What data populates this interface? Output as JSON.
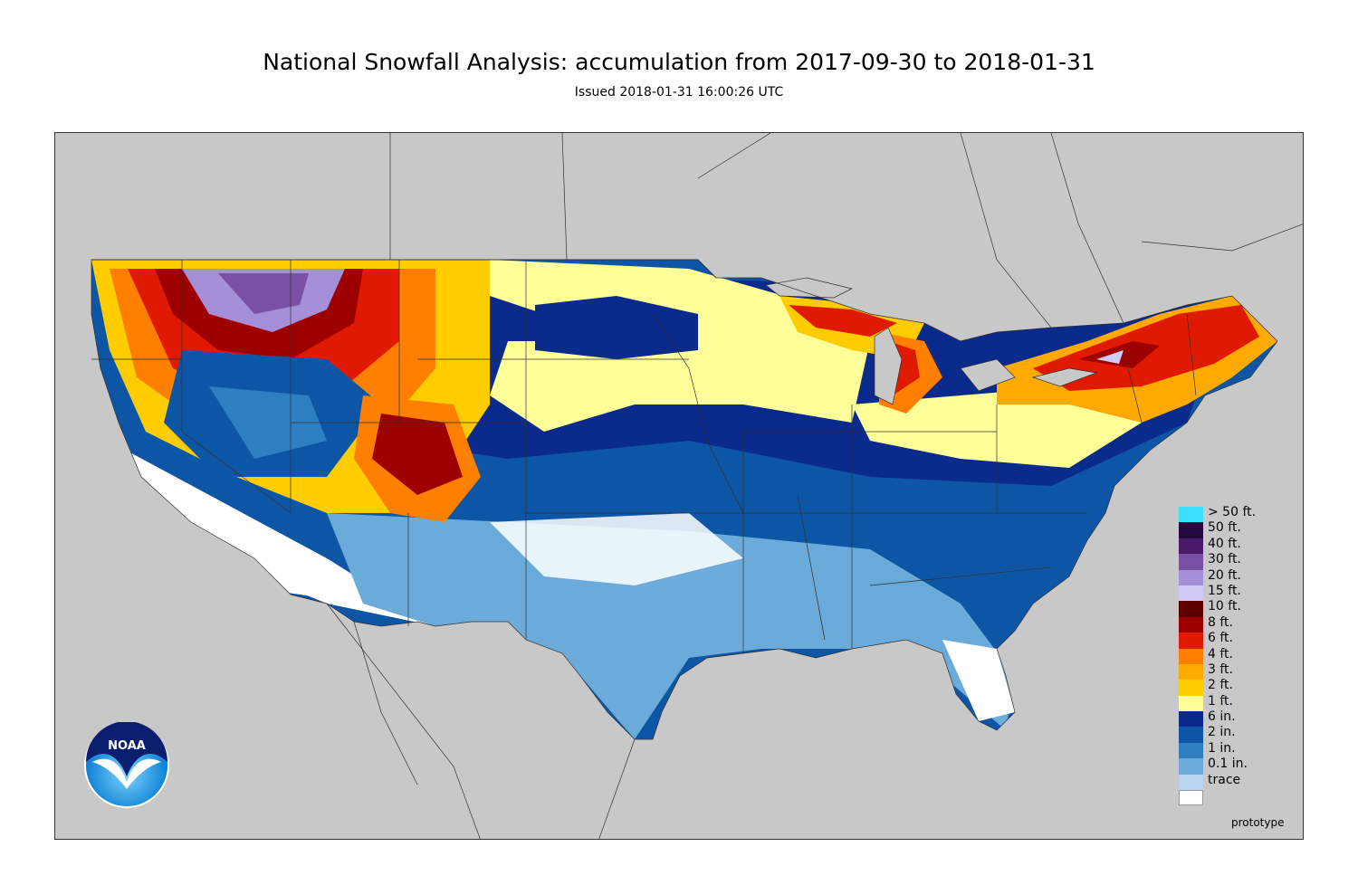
{
  "header": {
    "title": "National Snowfall Analysis: accumulation from 2017-09-30 to 2018-01-31",
    "issued": "Issued 2018-01-31 16:00:26 UTC"
  },
  "map": {
    "background_color": "#c8c8c8",
    "land_color": "#c8c8c8",
    "boundary_color": "#303030"
  },
  "legend": {
    "items": [
      {
        "label": "> 50 ft.",
        "color": "#3be0ff"
      },
      {
        "label": "50 ft.",
        "color": "#24093f"
      },
      {
        "label": "40 ft.",
        "color": "#4a1a6b"
      },
      {
        "label": "30 ft.",
        "color": "#7a4fa6"
      },
      {
        "label": "20 ft.",
        "color": "#a58fd8"
      },
      {
        "label": "15 ft.",
        "color": "#d0c9f5"
      },
      {
        "label": "10 ft.",
        "color": "#5e0000"
      },
      {
        "label": "8 ft.",
        "color": "#9e0000"
      },
      {
        "label": "6 ft.",
        "color": "#e01a00"
      },
      {
        "label": "4 ft.",
        "color": "#ff7f00"
      },
      {
        "label": "3 ft.",
        "color": "#ffaa00"
      },
      {
        "label": "2 ft.",
        "color": "#ffcc00"
      },
      {
        "label": "1 ft.",
        "color": "#ffff99"
      },
      {
        "label": "6 in.",
        "color": "#0a2a8c"
      },
      {
        "label": "2 in.",
        "color": "#0d56a6"
      },
      {
        "label": "1 in.",
        "color": "#2d7fc2"
      },
      {
        "label": "0.1 in.",
        "color": "#6aabd9"
      },
      {
        "label": "trace",
        "color": "#b7d6ec"
      },
      {
        "label": "",
        "color": "#ffffff"
      }
    ]
  },
  "watermark": "prototype",
  "logo": {
    "text": "NOAA",
    "icon": "noaa-logo-icon"
  }
}
